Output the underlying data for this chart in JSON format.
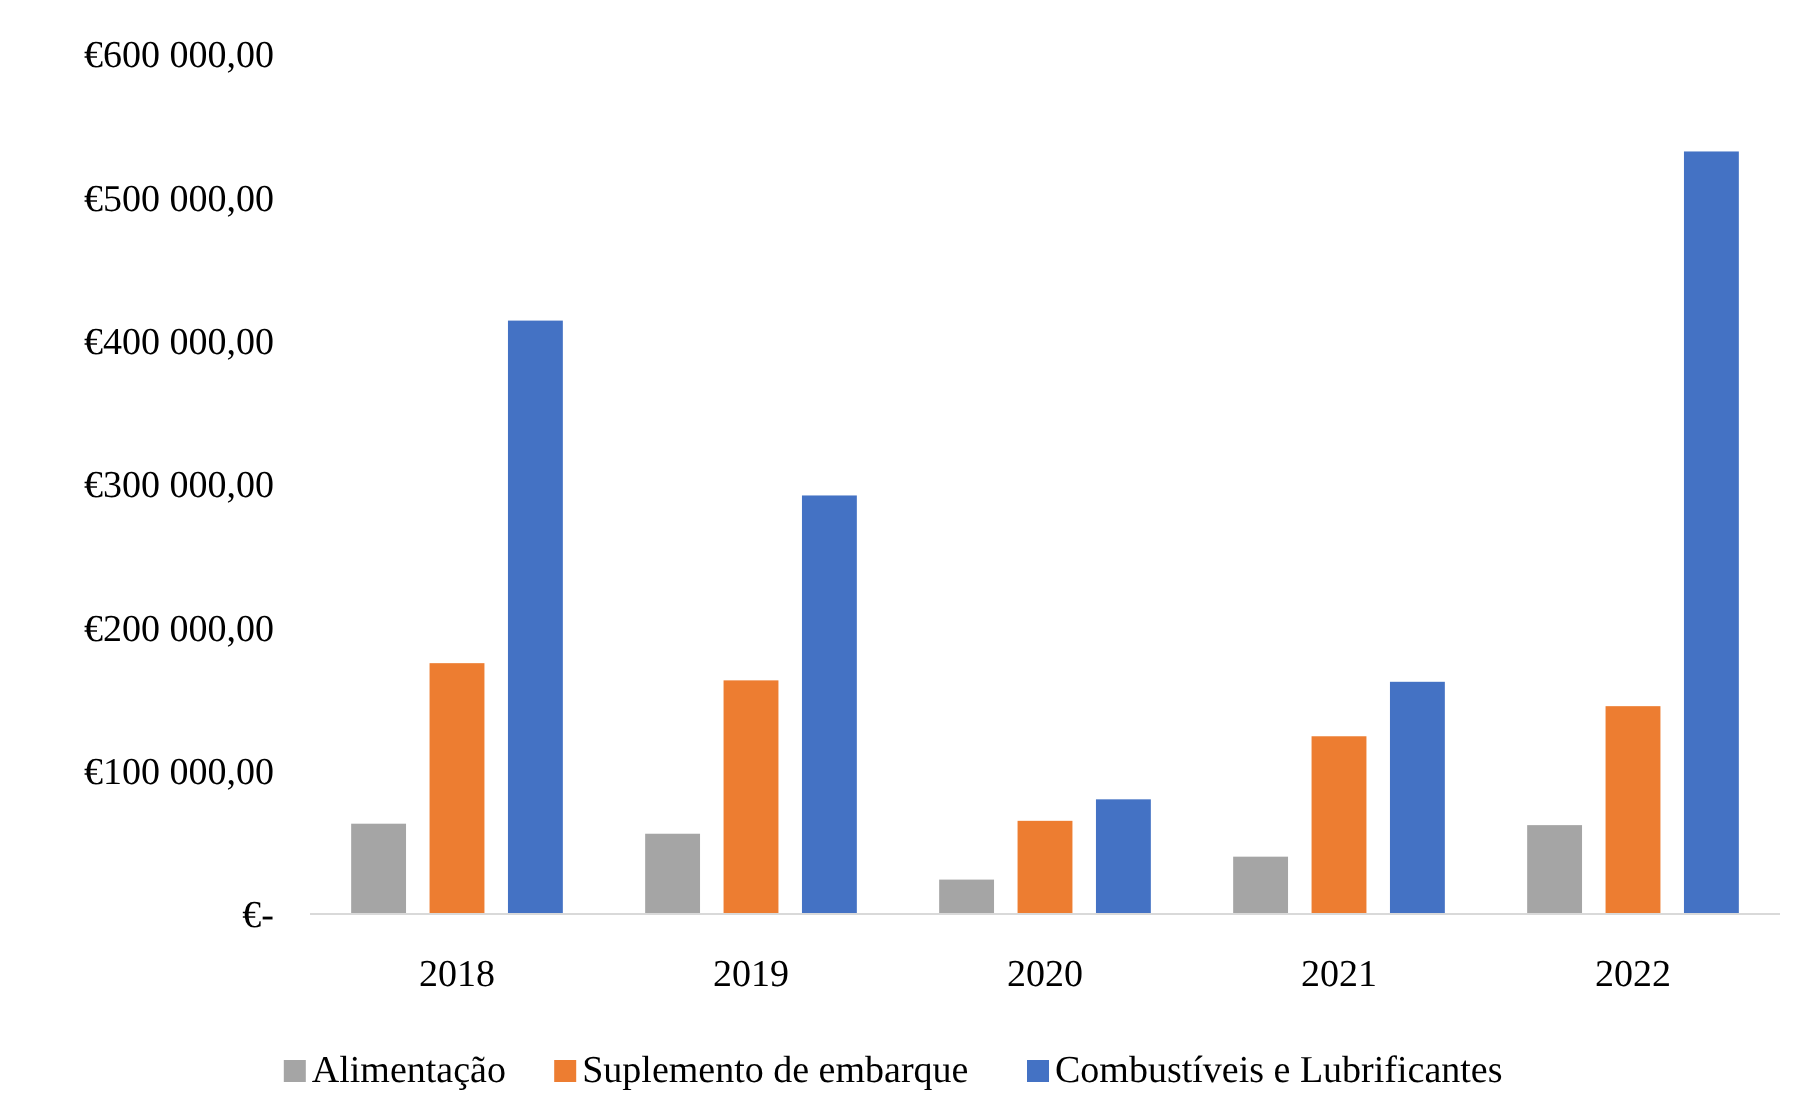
{
  "chart_data": {
    "type": "bar",
    "categories": [
      "2018",
      "2019",
      "2020",
      "2021",
      "2022"
    ],
    "series": [
      {
        "name": "Alimentação",
        "color": "#a5a5a5",
        "values": [
          63000,
          56000,
          24000,
          40000,
          62000
        ]
      },
      {
        "name": "Suplemento de embarque",
        "color": "#ed7d31",
        "values": [
          175000,
          163000,
          65000,
          124000,
          145000
        ]
      },
      {
        "name": "Combustíveis e Lubrificantes",
        "color": "#4472c4",
        "values": [
          414000,
          292000,
          80000,
          162000,
          532000
        ]
      }
    ],
    "ylim": [
      0,
      600000
    ],
    "yticks": [
      {
        "value": 0,
        "label": "€-"
      },
      {
        "value": 100000,
        "label": "€100 000,00"
      },
      {
        "value": 200000,
        "label": "€200 000,00"
      },
      {
        "value": 300000,
        "label": "€300 000,00"
      },
      {
        "value": 400000,
        "label": "€400 000,00"
      },
      {
        "value": 500000,
        "label": "€500 000,00"
      },
      {
        "value": 600000,
        "label": "€600 000,00"
      }
    ],
    "grid": false,
    "legend": "bottom"
  }
}
